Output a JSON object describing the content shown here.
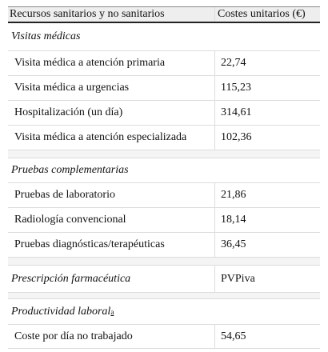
{
  "table": {
    "header": [
      "Recursos sanitarios y no sanitarios",
      "Costes unitarios (€)"
    ],
    "sections": [
      {
        "title": "Visitas médicas",
        "rows": [
          [
            "Visita médica a atención primaria",
            "22,74"
          ],
          [
            "Visita médica a urgencias",
            "115,23"
          ],
          [
            "Hospitalización (un día)",
            "314,61"
          ],
          [
            "Visita médica a atención especializada",
            "102,36"
          ]
        ]
      },
      {
        "title": "Pruebas complementarias",
        "rows": [
          [
            "Pruebas de laboratorio",
            "21,86"
          ],
          [
            "Radiología convencional",
            "18,14"
          ],
          [
            "Pruebas diagnósticas/terapéuticas",
            "36,45"
          ]
        ]
      },
      {
        "title": "Prescripción farmacéutica",
        "value": "PVPiva"
      },
      {
        "title": "Productividad laboral",
        "note": "a",
        "rows": [
          [
            "Coste por día no trabajado",
            "54,65"
          ]
        ]
      }
    ]
  }
}
